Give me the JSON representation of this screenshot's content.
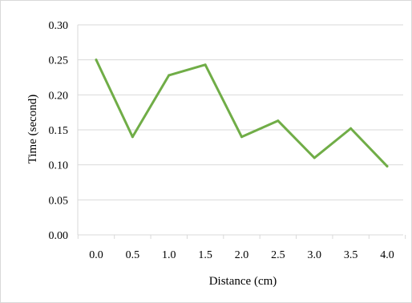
{
  "chart_data": {
    "type": "line",
    "title": "",
    "xlabel": "Distance (cm)",
    "ylabel": "Time (second)",
    "categories": [
      "0.0",
      "0.5",
      "1.0",
      "1.5",
      "2.0",
      "2.5",
      "3.0",
      "3.5",
      "4.0"
    ],
    "x": [
      0.0,
      0.5,
      1.0,
      1.5,
      2.0,
      2.5,
      3.0,
      3.5,
      4.0
    ],
    "series": [
      {
        "values": [
          0.25,
          0.14,
          0.228,
          0.243,
          0.14,
          0.163,
          0.11,
          0.152,
          0.098
        ],
        "color": "#70ad47"
      }
    ],
    "ylim": [
      0,
      0.3
    ],
    "yticks": [
      "0.30",
      "0.25",
      "0.20",
      "0.15",
      "0.10",
      "0.05",
      "0.00"
    ],
    "ytick_values": [
      0.3,
      0.25,
      0.2,
      0.15,
      0.1,
      0.05,
      0.0
    ],
    "grid": true,
    "gridline_color": "#d9d9d9",
    "axis_color": "#d9d9d9",
    "legend": "none"
  }
}
